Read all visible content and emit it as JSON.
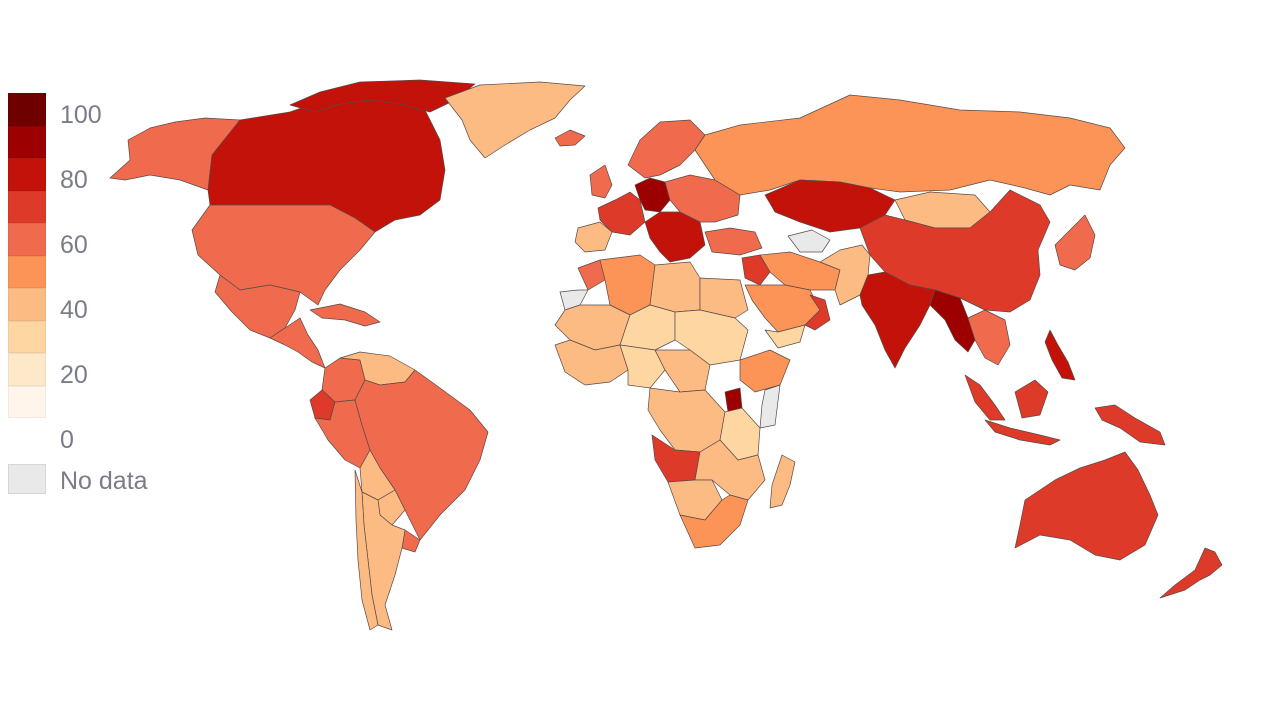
{
  "legend": {
    "colors": [
      "#fff5eb",
      "#fee8ca",
      "#fdd6a2",
      "#fdbb84",
      "#fc9457",
      "#f06a4d",
      "#dd3a2a",
      "#c21209",
      "#9c0000",
      "#6e0000"
    ],
    "ticks": [
      "100",
      "80",
      "60",
      "40",
      "20",
      "0"
    ],
    "no_data_label": "No data",
    "no_data_color": "#e9e9e9"
  },
  "regions": [
    {
      "name": "alaska",
      "level": 5
    },
    {
      "name": "canada",
      "level": 7
    },
    {
      "name": "canadian-arctic",
      "level": 7
    },
    {
      "name": "greenland",
      "level": 3
    },
    {
      "name": "usa",
      "level": 5
    },
    {
      "name": "mexico",
      "level": 5
    },
    {
      "name": "central-america",
      "level": 5
    },
    {
      "name": "caribbean",
      "level": 5
    },
    {
      "name": "colombia",
      "level": 5
    },
    {
      "name": "venezuela",
      "level": 3
    },
    {
      "name": "ecuador",
      "level": 6
    },
    {
      "name": "peru",
      "level": 5
    },
    {
      "name": "brazil",
      "level": 5
    },
    {
      "name": "bolivia",
      "level": 3
    },
    {
      "name": "paraguay",
      "level": 3
    },
    {
      "name": "uruguay",
      "level": 5
    },
    {
      "name": "argentina",
      "level": 3
    },
    {
      "name": "chile",
      "level": 3
    },
    {
      "name": "iceland",
      "level": 5
    },
    {
      "name": "uk-ireland",
      "level": 5
    },
    {
      "name": "scandinavia",
      "level": 5
    },
    {
      "name": "western-europe",
      "level": 6
    },
    {
      "name": "central-europe",
      "level": 8
    },
    {
      "name": "iberia",
      "level": 3
    },
    {
      "name": "italy-balkans",
      "level": 7
    },
    {
      "name": "eastern-europe",
      "level": 5
    },
    {
      "name": "russia",
      "level": 4
    },
    {
      "name": "turkey",
      "level": 5
    },
    {
      "name": "kazakhstan",
      "level": 7
    },
    {
      "name": "mongolia",
      "level": 3
    },
    {
      "name": "china",
      "level": 6
    },
    {
      "name": "korea-japan",
      "level": 5
    },
    {
      "name": "middle-east",
      "level": 4
    },
    {
      "name": "levant",
      "level": 6
    },
    {
      "name": "saudi-arabia",
      "level": 4
    },
    {
      "name": "oman",
      "level": 6
    },
    {
      "name": "yemen",
      "level": 2
    },
    {
      "name": "iran-afghanistan",
      "level": 3
    },
    {
      "name": "india",
      "level": 7
    },
    {
      "name": "myanmar",
      "level": 8
    },
    {
      "name": "se-asia",
      "level": 5
    },
    {
      "name": "philippines",
      "level": 7
    },
    {
      "name": "malaysia",
      "level": 6
    },
    {
      "name": "indonesia",
      "level": 6
    },
    {
      "name": "papua",
      "level": 6
    },
    {
      "name": "australia",
      "level": 6
    },
    {
      "name": "new-zealand",
      "level": 6
    },
    {
      "name": "morocco",
      "level": 5
    },
    {
      "name": "algeria",
      "level": 4
    },
    {
      "name": "libya",
      "level": 3
    },
    {
      "name": "egypt",
      "level": 3
    },
    {
      "name": "sahel-west",
      "level": 3
    },
    {
      "name": "mali-niger",
      "level": 2
    },
    {
      "name": "sudan",
      "level": 2
    },
    {
      "name": "west-africa-coast",
      "level": 3
    },
    {
      "name": "nigeria",
      "level": 2
    },
    {
      "name": "ethiopia",
      "level": 4
    },
    {
      "name": "somalia",
      "level": 8
    },
    {
      "name": "central-africa",
      "level": 3
    },
    {
      "name": "drc",
      "level": 3
    },
    {
      "name": "kenya-tanzania",
      "level": 2
    },
    {
      "name": "angola",
      "level": 6
    },
    {
      "name": "zambia-mozambique",
      "level": 3
    },
    {
      "name": "namibia-botswana",
      "level": 3
    },
    {
      "name": "south-africa",
      "level": 4
    },
    {
      "name": "madagascar",
      "level": 3
    },
    {
      "name": "western-sahara",
      "level": -1
    },
    {
      "name": "horn-nodata",
      "level": -1
    },
    {
      "name": "central-asia-nodata",
      "level": -1
    }
  ]
}
